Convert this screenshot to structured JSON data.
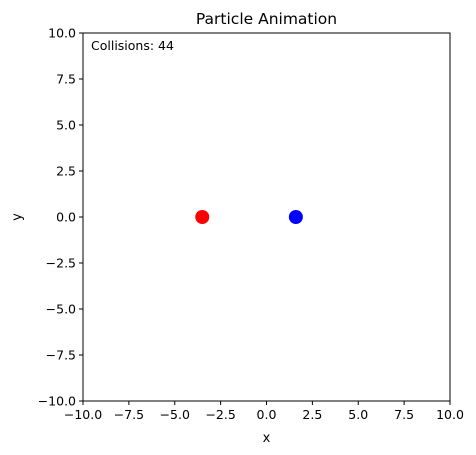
{
  "chart_data": {
    "type": "scatter",
    "title": "Particle Animation",
    "xlabel": "x",
    "ylabel": "y",
    "xlim": [
      -10,
      10
    ],
    "ylim": [
      -10,
      10
    ],
    "grid": false,
    "annotation": "Collisions: 44",
    "xticks": [
      -10,
      -7.5,
      -5,
      -2.5,
      0,
      2.5,
      5,
      7.5,
      10
    ],
    "yticks": [
      -10,
      -7.5,
      -5,
      -2.5,
      0,
      2.5,
      5,
      7.5,
      10
    ],
    "xtick_labels": [
      "−10.0",
      "−7.5",
      "−5.0",
      "−2.5",
      "0.0",
      "2.5",
      "5.0",
      "7.5",
      "10.0"
    ],
    "ytick_labels": [
      "−10.0",
      "−7.5",
      "−5.0",
      "−2.5",
      "0.0",
      "2.5",
      "5.0",
      "7.5",
      "10.0"
    ],
    "points": [
      {
        "x": -3.5,
        "y": 0,
        "color": "#ff0000"
      },
      {
        "x": 1.6,
        "y": 0,
        "color": "#0000ff"
      }
    ]
  }
}
